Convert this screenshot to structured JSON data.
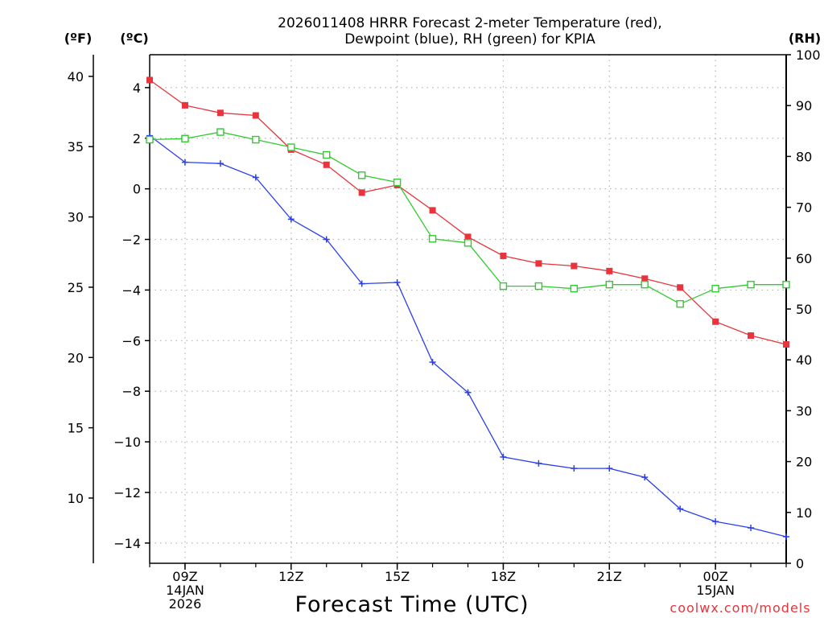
{
  "chart_data": {
    "type": "line",
    "title_line1": "2026011408 HRRR Forecast 2-meter Temperature (red),",
    "title_line2": "Dewpoint (blue), RH (green) for KPIA",
    "xlabel": "Forecast Time (UTC)",
    "credit": "coolwx.com/models",
    "units": {
      "fahrenheit": "(ºF)",
      "celsius": "(ºC)",
      "rh": "(RH)"
    },
    "x_hours_utc": [
      8,
      9,
      10,
      11,
      12,
      13,
      14,
      15,
      16,
      17,
      18,
      19,
      20,
      21,
      22,
      23,
      24,
      25,
      26
    ],
    "x_tick_labels": [
      {
        "hour": 9,
        "lines": [
          "09Z",
          "14JAN",
          "2026"
        ]
      },
      {
        "hour": 12,
        "lines": [
          "12Z"
        ]
      },
      {
        "hour": 15,
        "lines": [
          "15Z"
        ]
      },
      {
        "hour": 18,
        "lines": [
          "18Z"
        ]
      },
      {
        "hour": 21,
        "lines": [
          "21Z"
        ]
      },
      {
        "hour": 24,
        "lines": [
          "00Z",
          "15JAN"
        ]
      }
    ],
    "celsius_axis": {
      "min": -14.8,
      "max": 5.3,
      "ticks": [
        "4",
        "2",
        "0",
        "−2",
        "−4",
        "−6",
        "−8",
        "−10",
        "−12",
        "−14"
      ]
    },
    "fahrenheit_axis": {
      "ticks": [
        "40",
        "35",
        "30",
        "25",
        "20",
        "15",
        "10"
      ]
    },
    "rh_axis": {
      "min": 0,
      "max": 100,
      "ticks": [
        "100",
        "90",
        "80",
        "70",
        "60",
        "50",
        "40",
        "30",
        "20",
        "10",
        "0"
      ]
    },
    "series": [
      {
        "name": "2-meter Temperature",
        "unit": "°C",
        "color": "#e8343c",
        "marker": "filled-square",
        "values": [
          4.3,
          3.3,
          3.0,
          2.9,
          1.55,
          0.95,
          -0.15,
          0.15,
          -0.85,
          -1.9,
          -2.65,
          -2.95,
          -3.05,
          -3.25,
          -3.55,
          -3.9,
          -5.25,
          -5.8,
          -6.15
        ]
      },
      {
        "name": "Dewpoint",
        "unit": "°C",
        "color": "#2a3ef0",
        "marker": "plus",
        "values": [
          2.1,
          1.05,
          1.0,
          0.45,
          -1.2,
          -2.0,
          -3.75,
          -3.7,
          -6.85,
          -8.05,
          -10.6,
          -10.85,
          -11.05,
          -11.05,
          -11.4,
          -12.65,
          -13.15,
          -13.4,
          -13.75
        ]
      },
      {
        "name": "Relative Humidity",
        "unit": "%",
        "color": "#2ecc2e",
        "marker": "open-square",
        "values": [
          83.3,
          83.5,
          84.8,
          83.3,
          81.8,
          80.3,
          76.3,
          74.9,
          63.8,
          63.0,
          54.5,
          54.5,
          54.0,
          54.8,
          54.8,
          51.0,
          54.0,
          54.8,
          54.8
        ]
      }
    ]
  }
}
